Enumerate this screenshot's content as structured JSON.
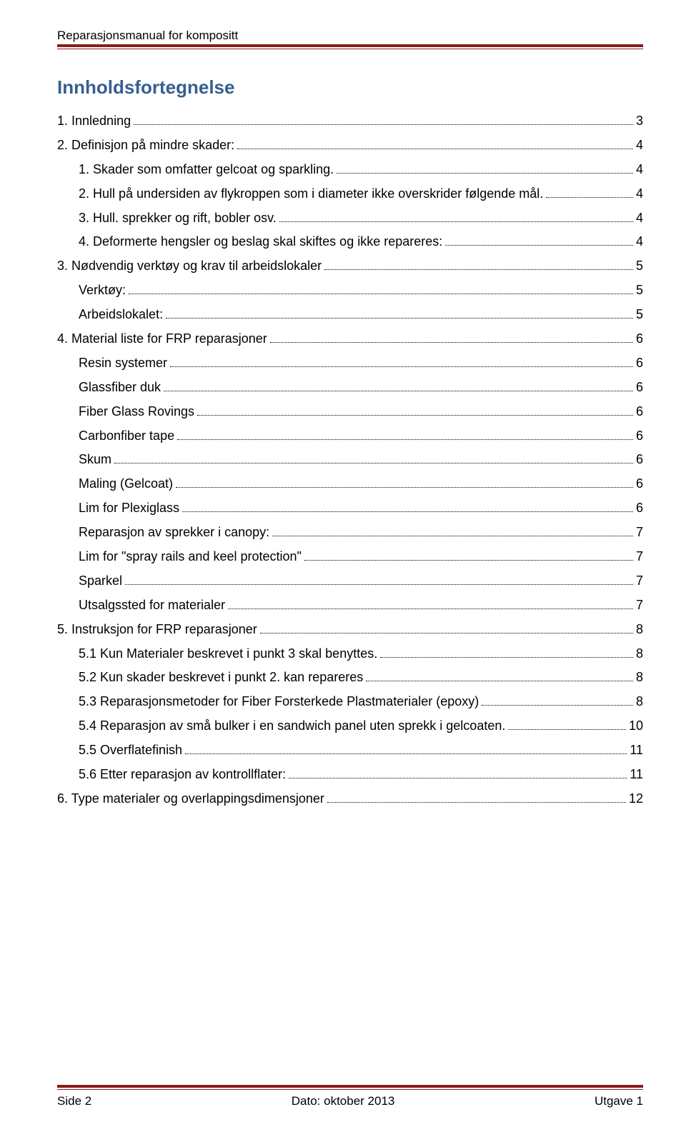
{
  "header": {
    "title": "Reparasjonsmanual for kompositt"
  },
  "colors": {
    "rule": "#8a1a1a",
    "heading": "#365f91",
    "text": "#000000",
    "background": "#ffffff"
  },
  "tocTitle": "Innholdsfortegnelse",
  "toc": [
    {
      "label": "1. Innledning",
      "page": "3",
      "indent": 0
    },
    {
      "label": "2. Definisjon på mindre skader:",
      "page": "4",
      "indent": 0
    },
    {
      "label": "1.    Skader som omfatter gelcoat og sparkling.",
      "page": "4",
      "indent": 1
    },
    {
      "label": "2.    Hull på undersiden av flykroppen som i diameter ikke overskrider følgende mål.",
      "page": "4",
      "indent": 1
    },
    {
      "label": "3.    Hull. sprekker og rift, bobler osv.",
      "page": "4",
      "indent": 1
    },
    {
      "label": "4.    Deformerte hengsler og beslag skal skiftes og ikke repareres:",
      "page": "4",
      "indent": 1
    },
    {
      "label": "3. Nødvendig verktøy og krav til arbeidslokaler",
      "page": "5",
      "indent": 0
    },
    {
      "label": "Verktøy:",
      "page": "5",
      "indent": 1
    },
    {
      "label": "Arbeidslokalet:",
      "page": "5",
      "indent": 1
    },
    {
      "label": "4. Material liste for FRP reparasjoner",
      "page": "6",
      "indent": 0
    },
    {
      "label": "Resin systemer",
      "page": "6",
      "indent": 1
    },
    {
      "label": "Glassfiber duk",
      "page": "6",
      "indent": 1
    },
    {
      "label": "Fiber Glass Rovings",
      "page": "6",
      "indent": 1
    },
    {
      "label": "Carbonfiber tape",
      "page": "6",
      "indent": 1
    },
    {
      "label": "Skum",
      "page": "6",
      "indent": 1
    },
    {
      "label": "Maling (Gelcoat)",
      "page": "6",
      "indent": 1
    },
    {
      "label": "Lim for Plexiglass",
      "page": "6",
      "indent": 1
    },
    {
      "label": "Reparasjon av sprekker i canopy:",
      "page": "7",
      "indent": 1
    },
    {
      "label": "Lim for \"spray rails and keel protection\"",
      "page": "7",
      "indent": 1
    },
    {
      "label": "Sparkel",
      "page": "7",
      "indent": 1
    },
    {
      "label": "Utsalgssted for materialer",
      "page": "7",
      "indent": 1
    },
    {
      "label": "5. Instruksjon for FRP reparasjoner",
      "page": "8",
      "indent": 0
    },
    {
      "label": "5.1     Kun Materialer beskrevet i punkt 3 skal benyttes.",
      "page": "8",
      "indent": 1
    },
    {
      "label": "5.2     Kun skader beskrevet i punkt 2. kan repareres",
      "page": "8",
      "indent": 1
    },
    {
      "label": "5.3     Reparasjonsmetoder for Fiber Forsterkede Plastmaterialer (epoxy)",
      "page": "8",
      "indent": 1
    },
    {
      "label": "5.4 Reparasjon av små bulker i en sandwich panel uten sprekk i gelcoaten.",
      "page": "10",
      "indent": 1
    },
    {
      "label": "5.5 Overflatefinish",
      "page": "11",
      "indent": 1
    },
    {
      "label": "5.6 Etter reparasjon av kontrollflater:",
      "page": "11",
      "indent": 1
    },
    {
      "label": "6. Type materialer og overlappingsdimensjoner",
      "page": "12",
      "indent": 0
    }
  ],
  "footer": {
    "left": "Side 2",
    "center": "Dato: oktober 2013",
    "right": "Utgave 1"
  }
}
